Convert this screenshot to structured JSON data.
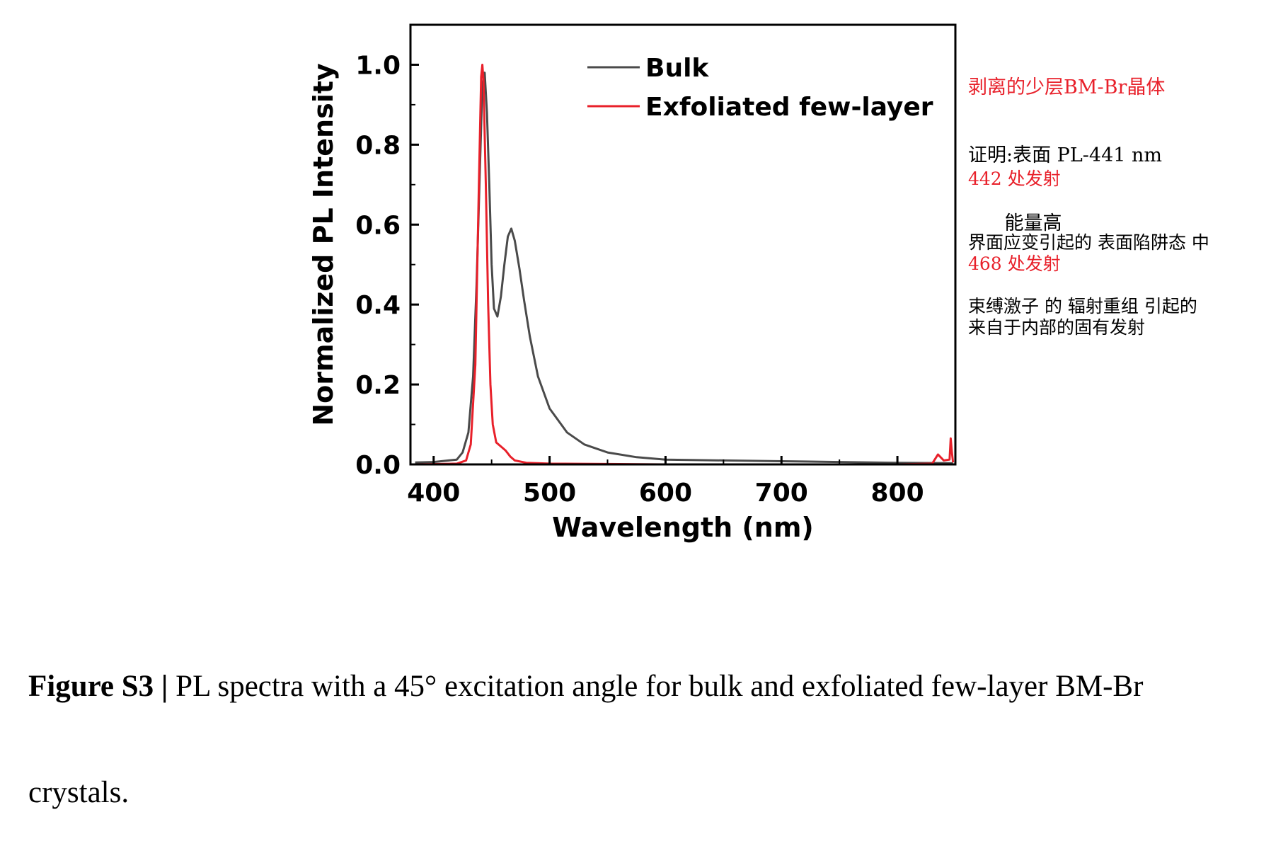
{
  "chart_data": {
    "type": "line",
    "xlabel": "Wavelength (nm)",
    "ylabel": "Normalized PL Intensity",
    "xlim": [
      380,
      850
    ],
    "ylim": [
      0,
      1.1
    ],
    "xticks": [
      400,
      500,
      600,
      700,
      800
    ],
    "yticks": [
      "0.0",
      "0.2",
      "0.4",
      "0.6",
      "0.8",
      "1.0"
    ],
    "legend": "top-right",
    "series": [
      {
        "name": "Bulk",
        "color": "#4a4a4a",
        "x": [
          384,
          400,
          420,
          425,
          430,
          434,
          437,
          440,
          442,
          444,
          446,
          448,
          450,
          452,
          455,
          458,
          461,
          464,
          467,
          470,
          474,
          478,
          483,
          490,
          500,
          515,
          530,
          550,
          575,
          600,
          650,
          700,
          750,
          800,
          848
        ],
        "y": [
          0.005,
          0.006,
          0.012,
          0.03,
          0.08,
          0.22,
          0.45,
          0.75,
          0.95,
          0.98,
          0.88,
          0.7,
          0.5,
          0.39,
          0.37,
          0.42,
          0.5,
          0.57,
          0.59,
          0.56,
          0.49,
          0.41,
          0.32,
          0.22,
          0.14,
          0.08,
          0.05,
          0.03,
          0.018,
          0.012,
          0.01,
          0.008,
          0.006,
          0.004,
          0.003
        ]
      },
      {
        "name": "Exfoliated few-layer",
        "color": "#e8202a",
        "x": [
          384,
          420,
          428,
          432,
          436,
          439,
          441,
          442,
          443,
          445,
          447,
          449,
          451,
          454,
          458,
          462,
          466,
          470,
          480,
          500,
          550,
          600,
          700,
          800,
          830,
          835,
          840,
          845,
          846,
          847,
          848
        ],
        "y": [
          0.0,
          0.002,
          0.01,
          0.05,
          0.25,
          0.7,
          0.97,
          1.0,
          0.96,
          0.7,
          0.4,
          0.2,
          0.1,
          0.055,
          0.045,
          0.035,
          0.02,
          0.01,
          0.004,
          0.002,
          0.001,
          0.0,
          0.0,
          0.0,
          0.002,
          0.025,
          0.01,
          0.012,
          0.065,
          0.03,
          0.005
        ]
      }
    ]
  },
  "notes": {
    "title": "剥离的少层BM-Br晶体",
    "line1": "证明:表面 PL-441 nm",
    "line2": "      能量高",
    "peak442_title": "442 处发射",
    "peak442_line1": "界面应变引起的 表面陷阱态 中",
    "peak442_line2": "束缚激子 的 辐射重组 引起的",
    "peak468_title": "468 处发射",
    "peak468_line1": "来自于内部的固有发射"
  },
  "caption": {
    "label": "Figure S3 |",
    "text": " PL spectra with a 45° excitation angle for bulk and exfoliated few-layer BM-Br crystals."
  }
}
